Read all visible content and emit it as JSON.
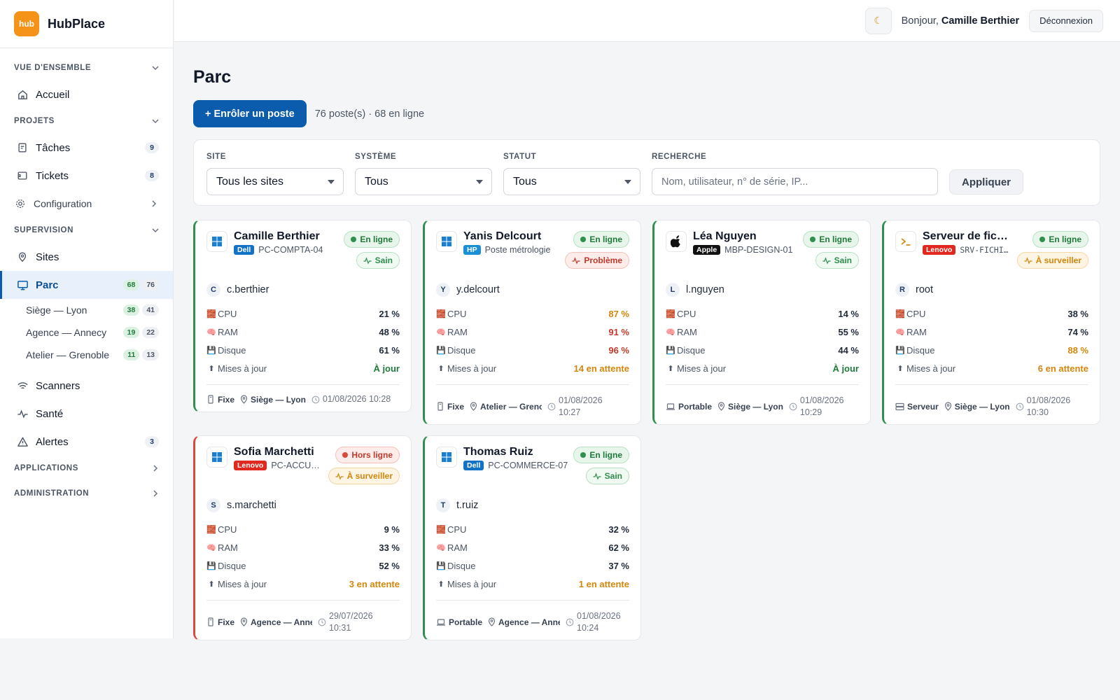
{
  "app": {
    "logo_text": "hub",
    "name": "HubPlace",
    "accent": "#0b5cad",
    "logo_color": "#f59318"
  },
  "topbar": {
    "theme_icon": "moon-icon",
    "greeting": "Bonjour,",
    "user": "Camille Berthier",
    "logout": "Déconnexion"
  },
  "sidebar": {
    "sections": {
      "overview": "Vue d'ensemble",
      "projects": "Projets",
      "supervision": "Supervision",
      "applications": "Applications",
      "administration": "Administration"
    },
    "home": "Accueil",
    "tasks": {
      "label": "Tâches",
      "count": "9"
    },
    "tickets": {
      "label": "Tickets",
      "count": "8"
    },
    "configuration": "Configuration",
    "sites": "Sites",
    "parc": {
      "label": "Parc",
      "online": "68",
      "total": "76"
    },
    "sub": [
      {
        "label": "Siège — Lyon",
        "online": "38",
        "total": "41"
      },
      {
        "label": "Agence — Annecy",
        "online": "19",
        "total": "22"
      },
      {
        "label": "Atelier — Grenoble",
        "online": "11",
        "total": "13"
      }
    ],
    "scanners": "Scanners",
    "health": "Santé",
    "alerts": {
      "label": "Alertes",
      "count": "3"
    }
  },
  "page": {
    "title": "Parc",
    "enroll": "+ Enrôler un poste",
    "summary": "76 poste(s) · 68 en ligne"
  },
  "filters": {
    "site": {
      "label": "Site",
      "value": "Tous les sites"
    },
    "system": {
      "label": "Système",
      "value": "Tous"
    },
    "status": {
      "label": "Statut",
      "value": "Tous"
    },
    "search": {
      "label": "Recherche",
      "placeholder": "Nom, utilisateur, n° de série, IP..."
    },
    "apply": "Appliquer"
  },
  "metric_labels": {
    "cpu": "CPU",
    "ram": "RAM",
    "disk": "Disque",
    "updates": "Mises à jour"
  },
  "cards": [
    {
      "name": "Camille Berthier",
      "brand": "Dell",
      "brand_color": "#1273c6",
      "host": "PC-COMPTA-04",
      "os": "windows",
      "status": "En ligne",
      "health": "Sain",
      "user_initial": "C",
      "user": "c.berthier",
      "cpu": "21 %",
      "ram": "48 %",
      "disk": "61 %",
      "updates": "À jour",
      "type": "Fixe",
      "location": "Siège — Lyon",
      "date": "01/08/2026 10:28"
    },
    {
      "name": "Yanis Delcourt",
      "brand": "HP",
      "brand_color": "#1a8fd6",
      "host": "Poste métrologie",
      "os": "windows",
      "status": "En ligne",
      "health": "Problème",
      "user_initial": "Y",
      "user": "y.delcourt",
      "cpu": "87 %",
      "ram": "91 %",
      "disk": "96 %",
      "updates": "14 en attente",
      "type": "Fixe",
      "location": "Atelier — Grenoble",
      "date": "01/08/2026 10:27"
    },
    {
      "name": "Léa Nguyen",
      "brand": "Apple",
      "brand_color": "#111111",
      "host": "MBP-DESIGN-01",
      "os": "apple",
      "status": "En ligne",
      "health": "Sain",
      "user_initial": "L",
      "user": "l.nguyen",
      "cpu": "14 %",
      "ram": "55 %",
      "disk": "44 %",
      "updates": "À jour",
      "type": "Portable",
      "location": "Siège — Lyon",
      "date": "01/08/2026 10:29"
    },
    {
      "name": "Serveur de fichiers",
      "brand": "Lenovo",
      "brand_color": "#e0281f",
      "host": "SRV-FICHIERS",
      "os": "terminal",
      "status": "En ligne",
      "health": "À surveiller",
      "user_initial": "R",
      "user": "root",
      "cpu": "38 %",
      "ram": "74 %",
      "disk": "88 %",
      "updates": "6 en attente",
      "type": "Serveur",
      "location": "Siège — Lyon",
      "date": "01/08/2026 10:30"
    },
    {
      "name": "Sofia Marchetti",
      "brand": "Lenovo",
      "brand_color": "#e0281f",
      "host": "PC-ACCUEIL",
      "os": "windows",
      "status": "Hors ligne",
      "health": "À surveiller",
      "user_initial": "S",
      "user": "s.marchetti",
      "cpu": "9 %",
      "ram": "33 %",
      "disk": "52 %",
      "updates": "3 en attente",
      "type": "Fixe",
      "location": "Agence — Annecy",
      "date": "29/07/2026 10:31"
    },
    {
      "name": "Thomas Ruiz",
      "brand": "Dell",
      "brand_color": "#1273c6",
      "host": "PC-COMMERCE-07",
      "os": "windows",
      "status": "En ligne",
      "health": "Sain",
      "user_initial": "T",
      "user": "t.ruiz",
      "cpu": "32 %",
      "ram": "62 %",
      "disk": "37 %",
      "updates": "1 en attente",
      "type": "Portable",
      "location": "Agence — Annecy",
      "date": "01/08/2026 10:24"
    }
  ]
}
